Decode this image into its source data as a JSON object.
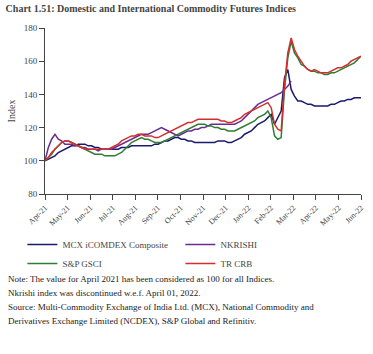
{
  "chart_data": {
    "type": "line",
    "title": "Chart 1.51: Domestic and International Commodity Futures Indices",
    "ylabel": "Index",
    "x": [
      0,
      0.1474,
      0.2947,
      0.4421,
      0.5895,
      0.7368,
      0.8842,
      1.0316,
      1.1789,
      1.3263,
      1.4737,
      1.6211,
      1.7684,
      1.9158,
      2.0632,
      2.2105,
      2.3579,
      2.5053,
      2.6526,
      2.8,
      2.9474,
      3.0947,
      3.2421,
      3.3895,
      3.5368,
      3.6842,
      3.8316,
      3.9789,
      4.1263,
      4.2737,
      4.4211,
      4.5684,
      4.7158,
      4.8632,
      5.0105,
      5.1579,
      5.3053,
      5.4526,
      5.6,
      5.7474,
      5.8947,
      6.0421,
      6.1895,
      6.3368,
      6.4842,
      6.6316,
      6.7789,
      6.9263,
      7.0737,
      7.2211,
      7.3684,
      7.5158,
      7.6632,
      7.8105,
      7.9579,
      8.1053,
      8.2526,
      8.4,
      8.5474,
      8.6947,
      8.8421,
      8.9895,
      9.1368,
      9.2842,
      9.4316,
      9.5789,
      9.7263,
      9.8737,
      10.0211,
      10.1684,
      10.3158,
      10.4632,
      10.6105,
      10.7579,
      10.9053,
      11.0526,
      11.2,
      11.3474,
      11.4947,
      11.6421,
      11.7895,
      11.9368,
      12.0842,
      12.2316,
      12.3789,
      12.5263,
      12.6737,
      12.8211,
      12.9684,
      13.1158,
      13.2632,
      13.4105,
      13.5579,
      13.7053,
      13.8526,
      14
    ],
    "xlim": [
      0,
      14
    ],
    "xticks": [
      {
        "value": 0,
        "label": "Apr-21"
      },
      {
        "value": 1,
        "label": "May-21"
      },
      {
        "value": 2,
        "label": "Jun-21"
      },
      {
        "value": 3,
        "label": "Jul-21"
      },
      {
        "value": 4,
        "label": "Aug-21"
      },
      {
        "value": 5,
        "label": "Sep-21"
      },
      {
        "value": 6,
        "label": "Oct-21"
      },
      {
        "value": 7,
        "label": "Nov-21"
      },
      {
        "value": 8,
        "label": "Dec-21"
      },
      {
        "value": 9,
        "label": "Jan-22"
      },
      {
        "value": 10,
        "label": "Feb-22"
      },
      {
        "value": 11,
        "label": "Mar-22"
      },
      {
        "value": 12,
        "label": "Apr-22"
      },
      {
        "value": 13,
        "label": "May-22"
      },
      {
        "value": 14,
        "label": "Jun-22"
      }
    ],
    "ylim": [
      80,
      180
    ],
    "yticks": [
      80,
      100,
      120,
      140,
      160,
      180
    ],
    "grid": false,
    "legend": "bottom",
    "series": [
      {
        "name": "MCX iCOMDEX Composite",
        "color": "#1a1a6e",
        "values": [
          100,
          101,
          102,
          103,
          105,
          106,
          107,
          108,
          109,
          109,
          110,
          110,
          110,
          109,
          109,
          108,
          108,
          107,
          107,
          107,
          107,
          107,
          107,
          108,
          108,
          108,
          109,
          109,
          109,
          109,
          109,
          109,
          109,
          110,
          110,
          111,
          112,
          112,
          113,
          114,
          114,
          113,
          113,
          112,
          112,
          111,
          111,
          111,
          111,
          111,
          111,
          111,
          112,
          112,
          112,
          111,
          111,
          112,
          113,
          114,
          116,
          117,
          118,
          120,
          122,
          123,
          124,
          126,
          128,
          122,
          126,
          130,
          150,
          155,
          143,
          139,
          136,
          136,
          135,
          134,
          134,
          133,
          133,
          133,
          133,
          133,
          134,
          134,
          135,
          136,
          136,
          137,
          137,
          138,
          138,
          138
        ]
      },
      {
        "name": "NKRISHI",
        "color": "#6a2d8f",
        "values": [
          100,
          108,
          113,
          116,
          113,
          112,
          110,
          110,
          110,
          109,
          109,
          108,
          108,
          107,
          107,
          107,
          106,
          107,
          107,
          107,
          107,
          108,
          109,
          110,
          111,
          112,
          113,
          114,
          115,
          116,
          116,
          116,
          117,
          118,
          119,
          120,
          119,
          118,
          117,
          116,
          115,
          116,
          117,
          118,
          118,
          119,
          119,
          120,
          120,
          121,
          122,
          122,
          122,
          122,
          122,
          122,
          122,
          122,
          123,
          124,
          126,
          128,
          130,
          132,
          134,
          135,
          136,
          137,
          138,
          139,
          140,
          141,
          143,
          145,
          148,
          null,
          null,
          null,
          null,
          null,
          null,
          null,
          null,
          null,
          null,
          null,
          null,
          null,
          null,
          null,
          null,
          null,
          null,
          null,
          null,
          null
        ]
      },
      {
        "name": "S&P GSCI",
        "color": "#2e7d32",
        "values": [
          100,
          102,
          104,
          107,
          109,
          111,
          112,
          112,
          111,
          110,
          109,
          108,
          107,
          106,
          105,
          104,
          104,
          104,
          103,
          103,
          103,
          103,
          104,
          105,
          107,
          109,
          111,
          112,
          113,
          114,
          113,
          113,
          112,
          111,
          111,
          111,
          112,
          113,
          114,
          115,
          116,
          117,
          118,
          119,
          120,
          121,
          122,
          122,
          122,
          121,
          121,
          120,
          120,
          119,
          119,
          118,
          118,
          118,
          119,
          120,
          121,
          122,
          123,
          124,
          126,
          127,
          128,
          130,
          126,
          115,
          113,
          114,
          143,
          162,
          172,
          165,
          162,
          158,
          157,
          155,
          154,
          154,
          153,
          153,
          152,
          152,
          153,
          153,
          154,
          155,
          156,
          157,
          158,
          159,
          161,
          163
        ]
      },
      {
        "name": "TR CRB",
        "color": "#d32f2f",
        "values": [
          100,
          102,
          105,
          107,
          109,
          111,
          112,
          112,
          111,
          110,
          109,
          108,
          107,
          107,
          107,
          107,
          107,
          107,
          107,
          107,
          108,
          109,
          110,
          112,
          113,
          114,
          115,
          115,
          116,
          116,
          115,
          115,
          115,
          114,
          114,
          115,
          116,
          117,
          118,
          119,
          120,
          121,
          122,
          123,
          123,
          124,
          125,
          125,
          125,
          125,
          125,
          125,
          125,
          124,
          124,
          123,
          123,
          124,
          125,
          126,
          128,
          129,
          130,
          131,
          132,
          133,
          134,
          135,
          132,
          122,
          119,
          118,
          146,
          165,
          174,
          167,
          163,
          160,
          157,
          155,
          154,
          155,
          154,
          153,
          153,
          153,
          154,
          155,
          156,
          156,
          157,
          158,
          160,
          161,
          162,
          163
        ]
      }
    ],
    "annotations": [
      "Note: The value for April 2021 has been considered as 100 for all Indices.",
      "Nkrishi index was discontinued w.e.f. April 01, 2022.",
      "Source: Multi-Commodity Exchange of India Ltd. (MCX), National Commodity and",
      "Derivatives Exchange Limited (NCDEX), S&P Global and Refinitiv."
    ]
  }
}
